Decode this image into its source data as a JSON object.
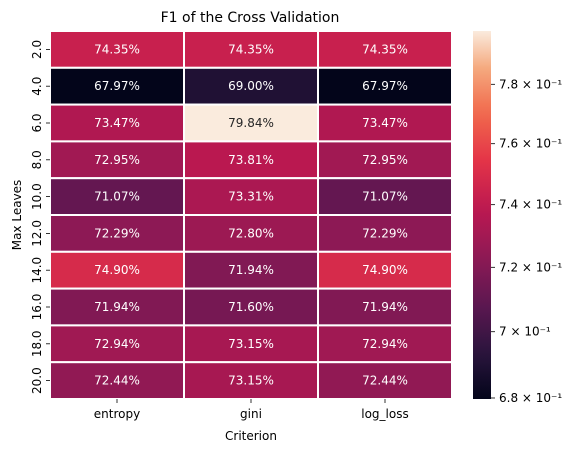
{
  "chart_data": {
    "type": "heatmap",
    "title": "F1 of the Cross Validation",
    "xlabel": "Criterion",
    "ylabel": "Max Leaves",
    "columns": [
      "entropy",
      "gini",
      "log_loss"
    ],
    "rows": [
      "2.0",
      "4.0",
      "6.0",
      "8.0",
      "10.0",
      "12.0",
      "14.0",
      "16.0",
      "18.0",
      "20.0"
    ],
    "values": [
      [
        0.7435,
        0.7435,
        0.7435
      ],
      [
        0.6797,
        0.69,
        0.6797
      ],
      [
        0.7347,
        0.7984,
        0.7347
      ],
      [
        0.7295,
        0.7381,
        0.7295
      ],
      [
        0.7107,
        0.7331,
        0.7107
      ],
      [
        0.7229,
        0.728,
        0.7229
      ],
      [
        0.749,
        0.7194,
        0.749
      ],
      [
        0.7194,
        0.716,
        0.7194
      ],
      [
        0.7294,
        0.7315,
        0.7294
      ],
      [
        0.7244,
        0.7315,
        0.7244
      ]
    ],
    "labels": [
      [
        "74.35%",
        "74.35%",
        "74.35%"
      ],
      [
        "67.97%",
        "69.00%",
        "67.97%"
      ],
      [
        "73.47%",
        "79.84%",
        "73.47%"
      ],
      [
        "72.95%",
        "73.81%",
        "72.95%"
      ],
      [
        "71.07%",
        "73.31%",
        "71.07%"
      ],
      [
        "72.29%",
        "72.80%",
        "72.29%"
      ],
      [
        "74.90%",
        "71.94%",
        "74.90%"
      ],
      [
        "71.94%",
        "71.60%",
        "71.94%"
      ],
      [
        "72.94%",
        "73.15%",
        "72.94%"
      ],
      [
        "72.44%",
        "73.15%",
        "72.44%"
      ]
    ],
    "colorbar": {
      "scale": "log",
      "range": [
        0.6797,
        0.7984
      ],
      "ticks": [
        0.68,
        0.7,
        0.72,
        0.74,
        0.76,
        0.78
      ],
      "tick_labels": [
        "6.8 × 10⁻¹",
        "7 × 10⁻¹",
        "7.2 × 10⁻¹",
        "7.4 × 10⁻¹",
        "7.6 × 10⁻¹",
        "7.8 × 10⁻¹"
      ]
    },
    "colormap": "rocket",
    "grid": false,
    "legend": "colorbar-right"
  }
}
